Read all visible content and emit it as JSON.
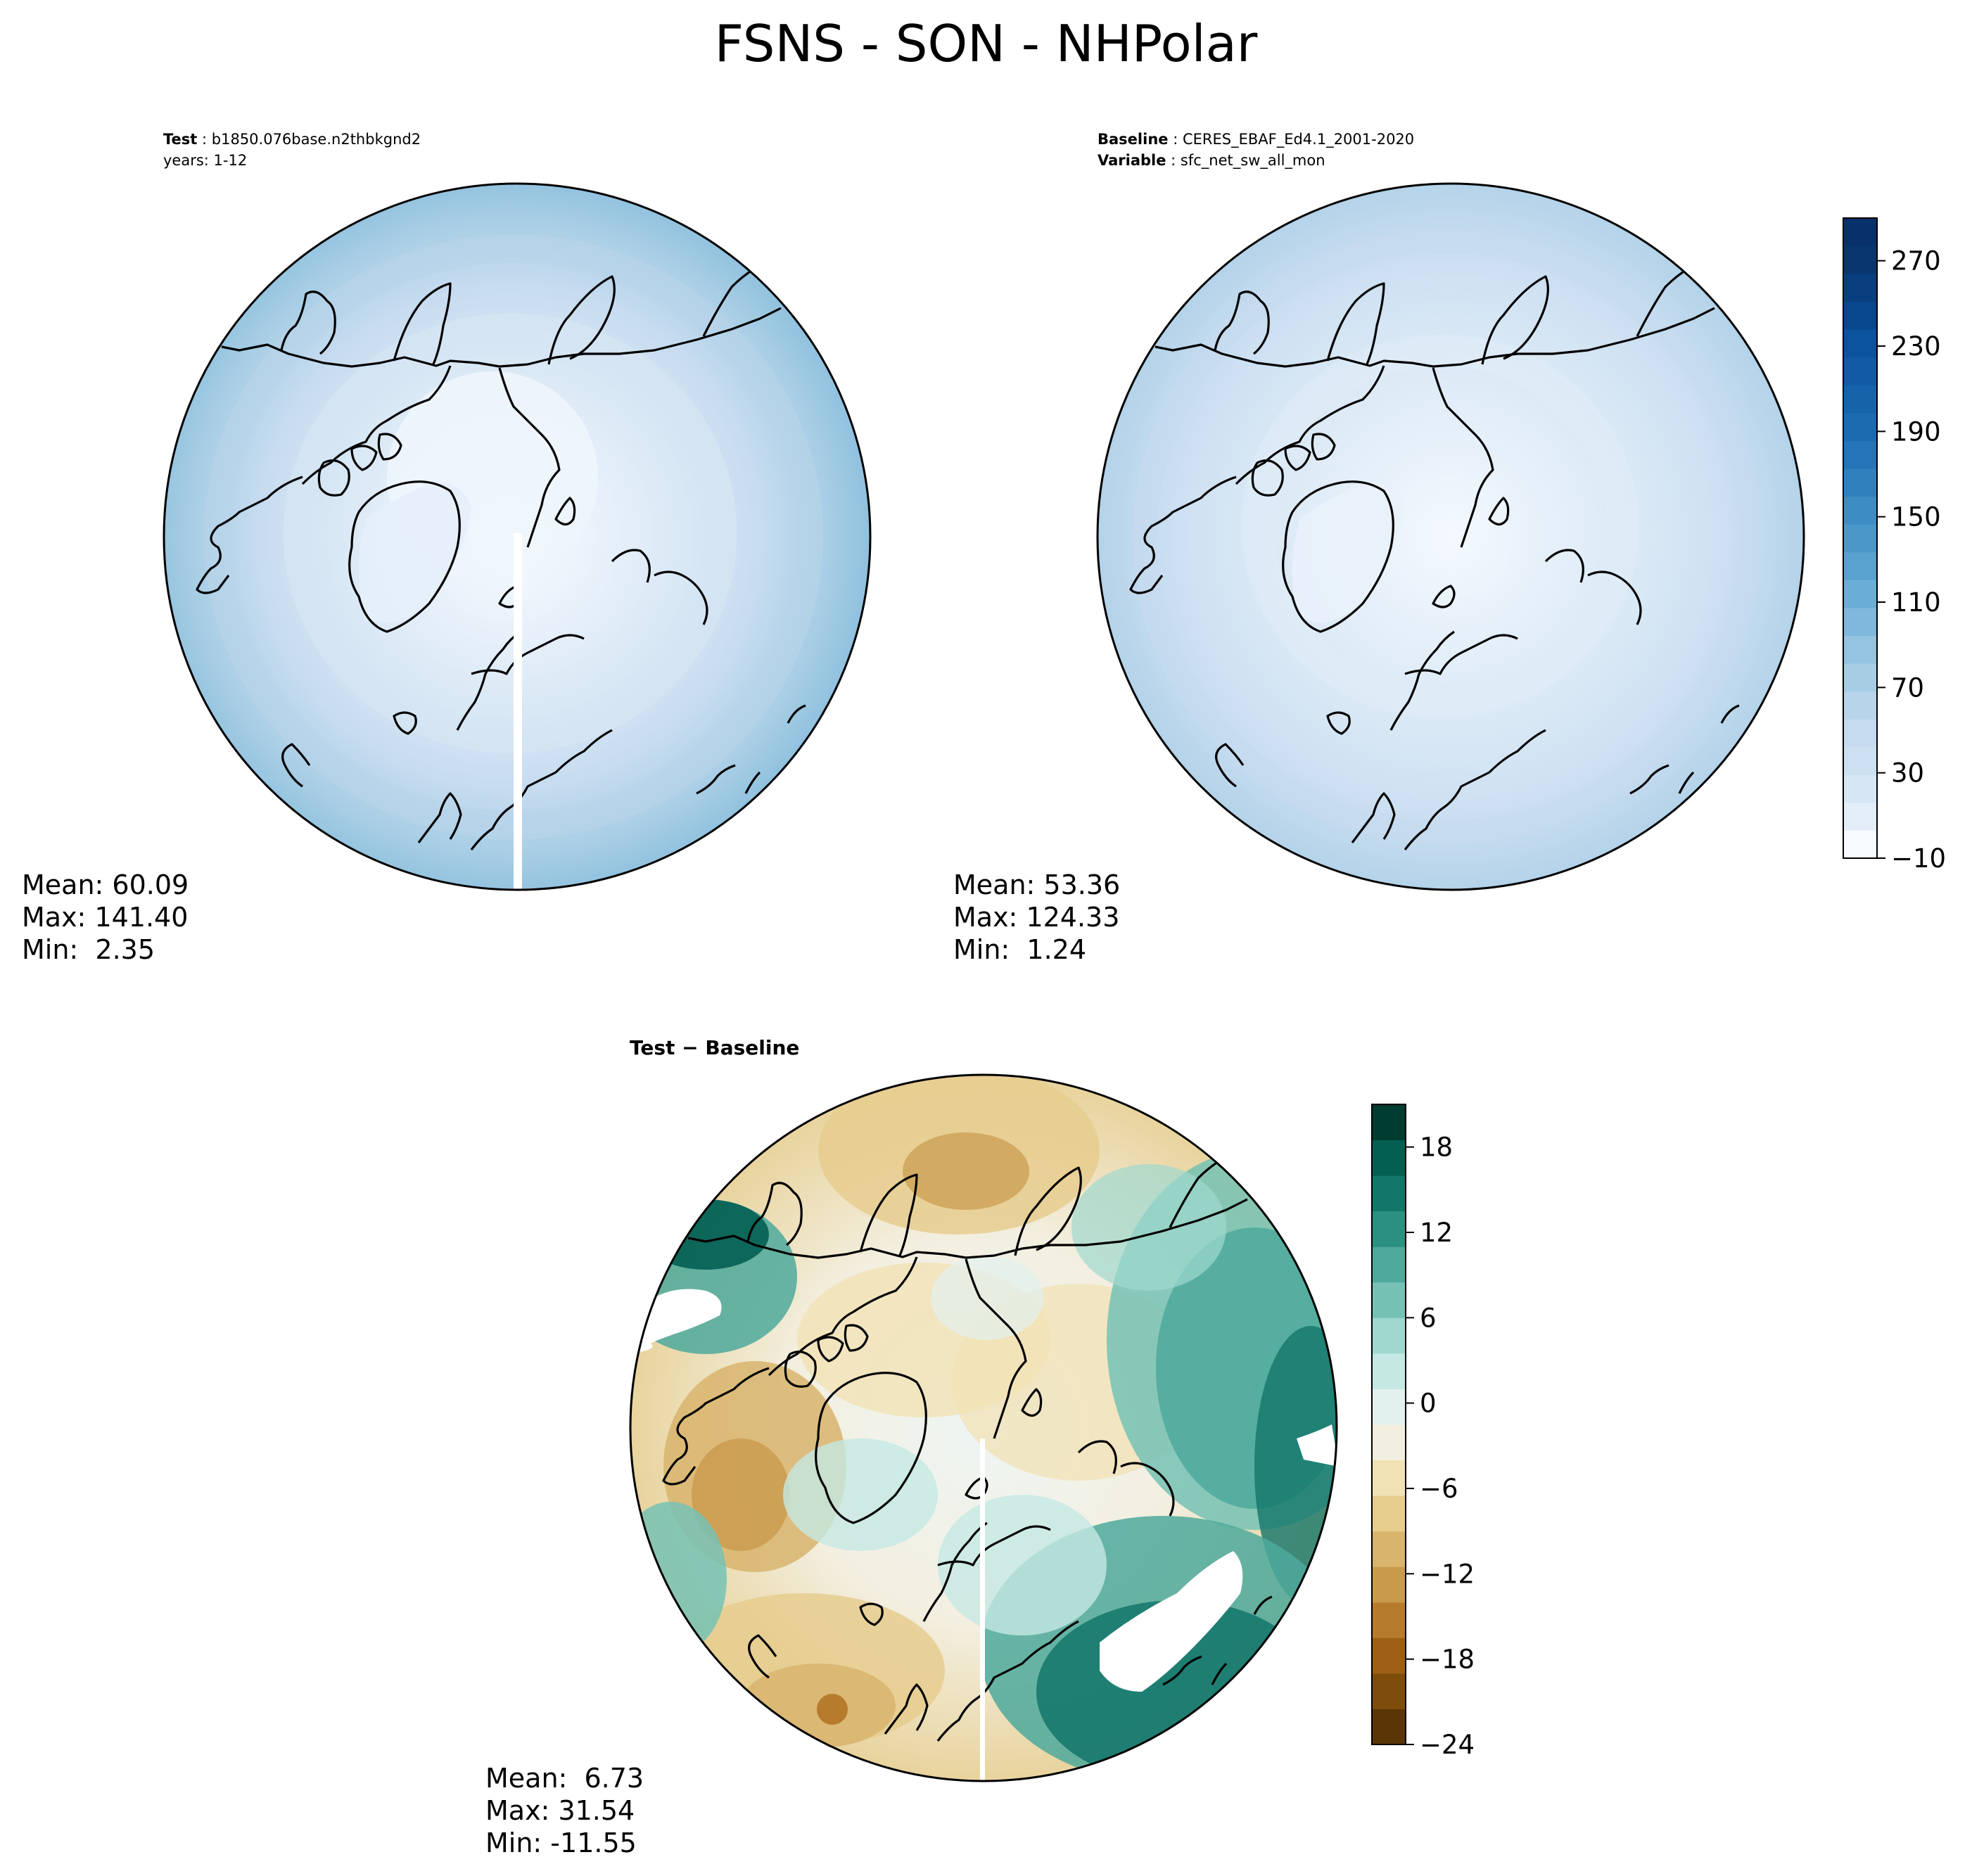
{
  "figure": {
    "title": "FSNS - SON - NHPolar"
  },
  "panels": {
    "test": {
      "line1_label": "Test",
      "line1_value": "b1850.076base.n2thbkgnd2",
      "line2": "years: 1-12",
      "stats": {
        "mean": "Mean: 60.09",
        "max": "Max: 141.40",
        "min": "Min:  2.35"
      }
    },
    "baseline": {
      "line1_label": "Baseline",
      "line1_value": "CERES_EBAF_Ed4.1_2001-2020",
      "line2_label": "Variable",
      "line2_value": "sfc_net_sw_all_mon",
      "stats": {
        "mean": "Mean: 53.36",
        "max": "Max: 124.33",
        "min": "Min:  1.24"
      }
    },
    "diff": {
      "title_left": "Test",
      "title_op": "−",
      "title_right": "Baseline",
      "stats": {
        "mean": "Mean:  6.73",
        "max": "Max: 31.54",
        "min": "Min: -11.55"
      }
    }
  },
  "colorbars": {
    "main": {
      "levels": [
        -10,
        10,
        20,
        30,
        40,
        50,
        60,
        70,
        80,
        90,
        100,
        110,
        120,
        130,
        140,
        150,
        160,
        170,
        180,
        190,
        200,
        210,
        220,
        230,
        240,
        250,
        260,
        270,
        280,
        290
      ],
      "tick_values": [
        -10,
        30,
        70,
        110,
        150,
        190,
        230,
        270
      ],
      "tick_labels": [
        "−10",
        "30",
        "70",
        "110",
        "150",
        "190",
        "230",
        "270"
      ],
      "colormap": "Blues",
      "colors": [
        "#f7fbff",
        "#e3eef9",
        "#d6e6f4",
        "#cde0f2",
        "#c6dbef",
        "#b7d4ea",
        "#a6cde4",
        "#94c4df",
        "#7fb8da",
        "#6aaed6",
        "#59a1cf",
        "#4a98c9",
        "#3d8dc4",
        "#3080bd",
        "#2474b7",
        "#1c6bb0",
        "#1763aa",
        "#105ba4",
        "#0b539c",
        "#08488e",
        "#083f7f",
        "#08366e",
        "#08306b"
      ]
    },
    "diff": {
      "levels": [
        -24,
        -21,
        -18,
        -15,
        -12,
        -9,
        -6,
        -3,
        0,
        3,
        6,
        9,
        12,
        15,
        18,
        21
      ],
      "tick_values": [
        -24,
        -18,
        -12,
        -6,
        0,
        6,
        12,
        18
      ],
      "tick_labels": [
        "−24",
        "−18",
        "−12",
        "−6",
        "0",
        "6",
        "12",
        "18"
      ],
      "colormap": "BrBG",
      "colors": [
        "#5a3506",
        "#7e4d0b",
        "#9c5f14",
        "#b77b2d",
        "#c99a4c",
        "#d8b46d",
        "#e6cd8e",
        "#f1e2b5",
        "#f3efe0",
        "#e3f1ee",
        "#c5e8e3",
        "#9fd8cf",
        "#75c2b5",
        "#4ea99c",
        "#2b8f82",
        "#13766a",
        "#035f52",
        "#003c30"
      ]
    }
  },
  "colors": {
    "land_outline": "#000000",
    "ocean_light": "#e8f1fb",
    "diff_land_zero": "#eef5f3"
  }
}
